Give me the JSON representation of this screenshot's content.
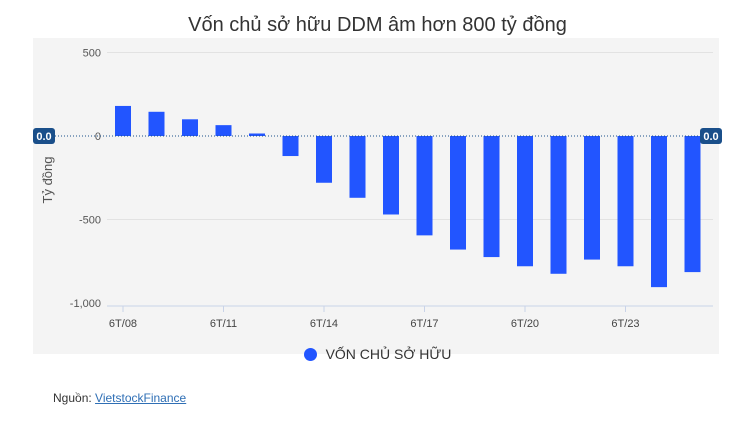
{
  "chart_data": {
    "type": "bar",
    "title": "Vốn chủ sở hữu DDM âm hơn 800 tỷ đồng",
    "ylabel": "Tỷ đồng",
    "xlabel": "",
    "ylim": [
      -1000,
      500
    ],
    "yticks": [
      "500",
      "0",
      "-500",
      "-1,000"
    ],
    "ytick_values": [
      500,
      0,
      -500,
      -1000
    ],
    "x_tick_labels": [
      "6T/08",
      "6T/11",
      "6T/14",
      "6T/17",
      "6T/20",
      "6T/23"
    ],
    "grid": true,
    "legend_position": "bottom",
    "series": [
      {
        "name": "VỐN CHỦ SỞ HỮU",
        "color": "#2255ff",
        "values": [
          180,
          145,
          100,
          65,
          15,
          -120,
          -280,
          -370,
          -470,
          -595,
          -680,
          -725,
          -780,
          -825,
          -740,
          -780,
          -905,
          -815
        ]
      }
    ],
    "reference_line": {
      "value": 0,
      "label_left": "0.0",
      "label_right": "0.0"
    }
  },
  "source": {
    "label": "Nguồn:",
    "link_text": "VietstockFinance"
  }
}
